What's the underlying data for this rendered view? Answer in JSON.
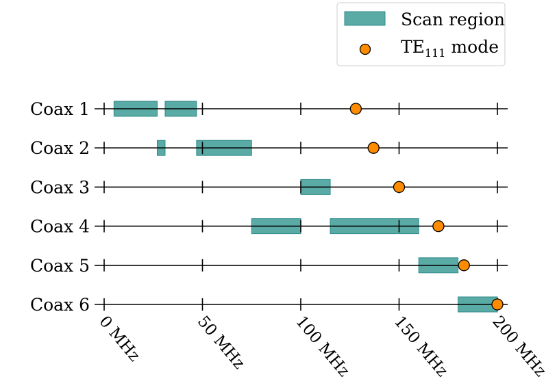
{
  "chart_data": {
    "type": "timeline",
    "xlim": [
      -5,
      205
    ],
    "x_unit": "MHz",
    "x_ticks": [
      {
        "value": 0,
        "label": "0 MHz"
      },
      {
        "value": 50,
        "label": "50 MHz"
      },
      {
        "value": 100,
        "label": "100 MHz"
      },
      {
        "value": 150,
        "label": "150 MHz"
      },
      {
        "value": 200,
        "label": "200 MHz"
      }
    ],
    "tick_label_rotation_deg": 50,
    "grid": false,
    "legend": {
      "placement": "top-right",
      "entries": [
        {
          "label": "Scan region",
          "marker": "rect",
          "color": "#5aaaa5"
        },
        {
          "label": "TE",
          "subscript": "111",
          "suffix": " mode",
          "marker": "circle",
          "color": "#ff8c00"
        }
      ]
    },
    "colors": {
      "scan_fill": "#5aaaa5",
      "scan_edge": "#2d8b88",
      "mode_fill": "#ff8c00",
      "mode_edge": "#000000",
      "axis_line": "#000000"
    },
    "rows": [
      {
        "label": "Coax 1",
        "scan_regions": [
          [
            5,
            27
          ],
          [
            31,
            47
          ]
        ],
        "te111_mode": 128
      },
      {
        "label": "Coax 2",
        "scan_regions": [
          [
            27,
            31
          ],
          [
            47,
            75
          ]
        ],
        "te111_mode": 137
      },
      {
        "label": "Coax 3",
        "scan_regions": [
          [
            100,
            115
          ]
        ],
        "te111_mode": 150
      },
      {
        "label": "Coax 4",
        "scan_regions": [
          [
            75,
            100
          ],
          [
            115,
            160
          ]
        ],
        "te111_mode": 170
      },
      {
        "label": "Coax 5",
        "scan_regions": [
          [
            160,
            180
          ]
        ],
        "te111_mode": 183
      },
      {
        "label": "Coax 6",
        "scan_regions": [
          [
            180,
            200
          ]
        ],
        "te111_mode": 200
      }
    ]
  }
}
